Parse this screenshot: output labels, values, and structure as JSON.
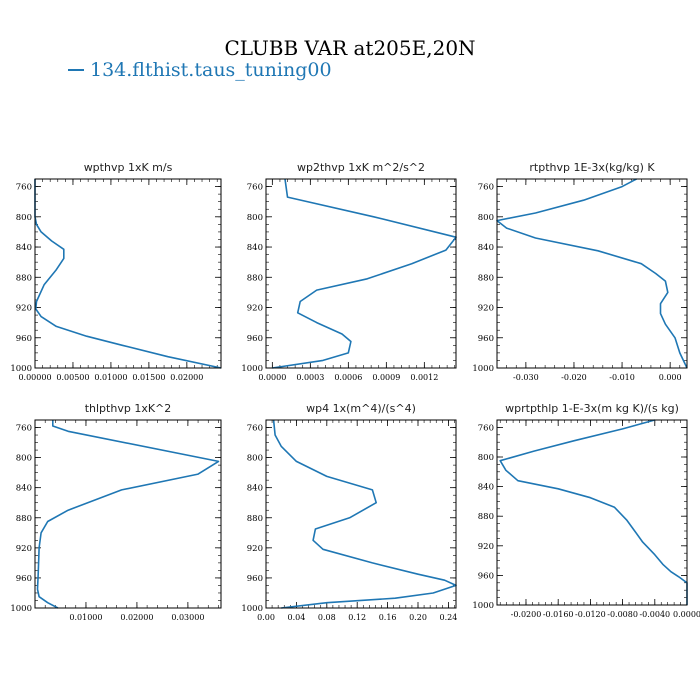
{
  "page": {
    "title": "CLUBB VAR at205E,20N",
    "legend_label": "134.flthist.taus_tuning00",
    "line_color": "#1f77b4"
  },
  "chart_data": [
    {
      "type": "line",
      "title": "wpthvp  1xK m/s",
      "xlim": [
        0,
        0.0245
      ],
      "ylim": [
        1000,
        750
      ],
      "yticks": [
        760,
        800,
        840,
        880,
        920,
        960,
        1000
      ],
      "xticks": [
        0,
        0.005,
        0.01,
        0.015,
        0.02
      ],
      "xtick_labels": [
        "0.00000",
        "0.00500",
        "0.01000",
        "0.01500",
        "0.02000"
      ],
      "x": [
        0,
        0,
        0.0002,
        0.0008,
        0.0022,
        0.0038,
        0.0038,
        0.0028,
        0.0012,
        0.0002,
        0.0001,
        0.0008,
        0.0028,
        0.0068,
        0.0115,
        0.0175,
        0.0245
      ],
      "y": [
        750,
        800,
        810,
        820,
        832,
        843,
        855,
        870,
        890,
        912,
        922,
        932,
        945,
        958,
        970,
        985,
        1000
      ]
    },
    {
      "type": "line",
      "title": "wp2thvp  1xK m^2/s^2",
      "xlim": [
        -5e-05,
        0.00145
      ],
      "ylim": [
        1000,
        750
      ],
      "yticks": [
        760,
        800,
        840,
        880,
        920,
        960,
        1000
      ],
      "xticks": [
        0,
        0.0003,
        0.0006,
        0.0009,
        0.0012
      ],
      "xtick_labels": [
        "0.0000",
        "0.0003",
        "0.0006",
        "0.0009",
        "0.0012"
      ],
      "x": [
        0.0001,
        0.00012,
        0.0008,
        0.00145,
        0.00137,
        0.0011,
        0.00075,
        0.00035,
        0.00022,
        0.0002,
        0.00035,
        0.00055,
        0.00062,
        0.0006,
        0.0004,
        0
      ],
      "y": [
        750,
        774,
        800,
        827,
        844,
        862,
        882,
        897,
        912,
        927,
        940,
        955,
        965,
        980,
        990,
        1000
      ]
    },
    {
      "type": "line",
      "title": "rtpthvp  1E-3x(kg/kg) K",
      "xlim": [
        -0.036,
        0.0035
      ],
      "ylim": [
        1000,
        750
      ],
      "yticks": [
        760,
        800,
        840,
        880,
        920,
        960,
        1000
      ],
      "xticks": [
        -0.03,
        -0.02,
        -0.01,
        0
      ],
      "xtick_labels": [
        "-0.030",
        "-0.020",
        "-0.010",
        "0.000"
      ],
      "x": [
        -0.007,
        -0.01,
        -0.018,
        -0.028,
        -0.036,
        -0.034,
        -0.028,
        -0.015,
        -0.006,
        -0.003,
        -0.001,
        -0.0005,
        -0.002,
        -0.002,
        -0.001,
        0.001,
        0.002,
        0.0035
      ],
      "y": [
        750,
        760,
        778,
        795,
        805,
        815,
        828,
        845,
        862,
        875,
        885,
        900,
        915,
        928,
        942,
        960,
        980,
        1000
      ]
    },
    {
      "type": "line",
      "title": "thlpthvp  1xK^2",
      "xlim": [
        0,
        0.0365
      ],
      "ylim": [
        1000,
        750
      ],
      "yticks": [
        760,
        800,
        840,
        880,
        920,
        960,
        1000
      ],
      "xticks": [
        0.01,
        0.02,
        0.03
      ],
      "xtick_labels": [
        "0.01000",
        "0.02000",
        "0.03000"
      ],
      "x": [
        0.0035,
        0.0035,
        0.0065,
        0.036,
        0.032,
        0.017,
        0.0065,
        0.0025,
        0.0012,
        0.0008,
        0.0007,
        0.0006,
        0.0005,
        0.0008,
        0.0025,
        0.0045
      ],
      "y": [
        750,
        758,
        765,
        805,
        822,
        843,
        870,
        885,
        900,
        920,
        940,
        958,
        975,
        985,
        993,
        1000
      ]
    },
    {
      "type": "line",
      "title": "wp4  1x(m^4)/(s^4)",
      "xlim": [
        0,
        0.25
      ],
      "ylim": [
        1000,
        750
      ],
      "yticks": [
        760,
        800,
        840,
        880,
        920,
        960,
        1000
      ],
      "xticks": [
        0,
        0.04,
        0.08,
        0.12,
        0.16,
        0.2,
        0.24
      ],
      "xtick_labels": [
        "0.00",
        "0.04",
        "0.08",
        "0.12",
        "0.16",
        "0.20",
        "0.24"
      ],
      "x": [
        0.01,
        0.012,
        0.02,
        0.04,
        0.08,
        0.14,
        0.145,
        0.11,
        0.065,
        0.062,
        0.075,
        0.14,
        0.2,
        0.235,
        0.25,
        0.22,
        0.17,
        0.08,
        0.02
      ],
      "y": [
        750,
        770,
        785,
        805,
        825,
        843,
        860,
        880,
        895,
        910,
        922,
        940,
        955,
        963,
        970,
        980,
        987,
        993,
        1000
      ]
    },
    {
      "type": "line",
      "title": "wprtpthlp  1-E-3x(m kg K)/(s kg)",
      "xlim": [
        -0.0236,
        0
      ],
      "ylim": [
        1000,
        750
      ],
      "yticks": [
        760,
        800,
        840,
        880,
        920,
        960,
        1000
      ],
      "xticks": [
        -0.02,
        -0.016,
        -0.012,
        -0.008,
        -0.004,
        0
      ],
      "xtick_labels": [
        "-0.0200",
        "-0.0160",
        "-0.0120",
        "-0.0080",
        "-0.0040",
        "0.0000"
      ],
      "x": [
        -0.004,
        -0.008,
        -0.014,
        -0.019,
        -0.0232,
        -0.0225,
        -0.021,
        -0.016,
        -0.012,
        -0.009,
        -0.0075,
        -0.0065,
        -0.0055,
        -0.004,
        -0.003,
        -0.002,
        -0.001,
        0,
        0
      ],
      "y": [
        750,
        762,
        778,
        792,
        805,
        818,
        832,
        843,
        855,
        868,
        885,
        900,
        915,
        932,
        945,
        955,
        962,
        970,
        1000
      ]
    }
  ]
}
